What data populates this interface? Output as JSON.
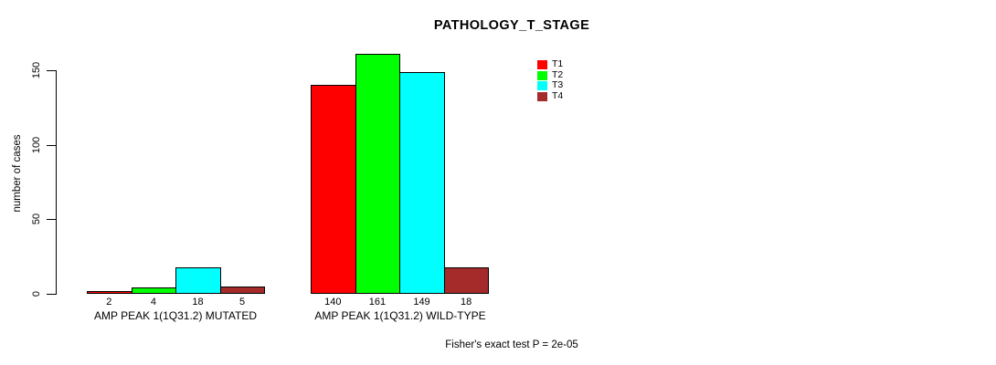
{
  "chart_data": {
    "type": "bar",
    "title": "PATHOLOGY_T_STAGE",
    "ylabel": "number of cases",
    "xlabel": "",
    "ylim": [
      0,
      165
    ],
    "yticks": [
      0,
      50,
      100,
      150
    ],
    "grid": false,
    "legend_position": "top-right",
    "categories": [
      "AMP PEAK 1(1Q31.2) MUTATED",
      "AMP PEAK 1(1Q31.2) WILD-TYPE"
    ],
    "series": [
      {
        "name": "T1",
        "color": "#ff0000",
        "values": [
          2,
          140
        ]
      },
      {
        "name": "T2",
        "color": "#00ff00",
        "values": [
          4,
          161
        ]
      },
      {
        "name": "T3",
        "color": "#00ffff",
        "values": [
          18,
          149
        ]
      },
      {
        "name": "T4",
        "color": "#a52a2a",
        "values": [
          5,
          18
        ]
      }
    ],
    "bar_value_labels": [
      [
        "2",
        "4",
        "18",
        "5"
      ],
      [
        "140",
        "161",
        "149",
        "18"
      ]
    ],
    "footnote": "Fisher's exact test P = 2e-05"
  }
}
